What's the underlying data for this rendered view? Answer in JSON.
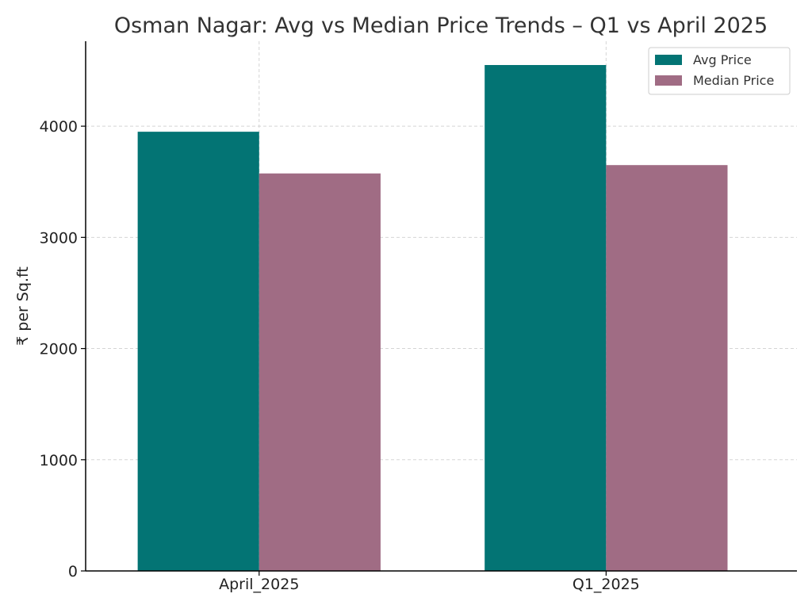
{
  "chart_data": {
    "type": "bar",
    "title": "Osman Nagar: Avg vs Median Price Trends – Q1 vs April 2025",
    "xlabel": "",
    "ylabel": "₹ per Sq.ft",
    "categories": [
      "April_2025",
      "Q1_2025"
    ],
    "series": [
      {
        "name": "Avg Price",
        "color": "#037474",
        "values": [
          3950,
          4550
        ]
      },
      {
        "name": "Median Price",
        "color": "#a06c84",
        "values": [
          3575,
          3650
        ]
      }
    ],
    "ylim": [
      0,
      4550
    ],
    "yticks": [
      0,
      1000,
      2000,
      3000,
      4000
    ],
    "grid": true,
    "legend_position": "top-right"
  }
}
